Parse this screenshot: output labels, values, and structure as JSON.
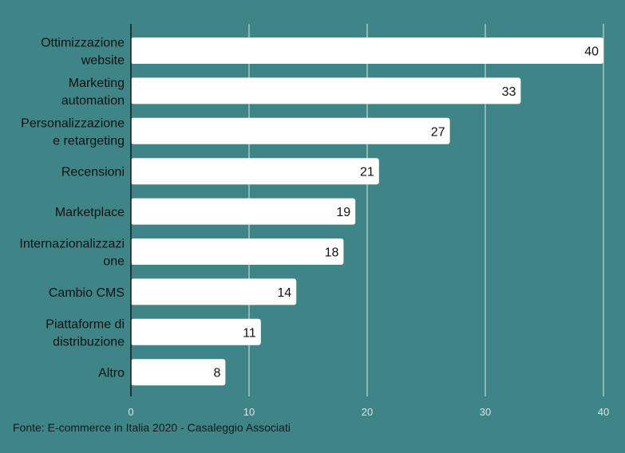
{
  "chart_data": {
    "type": "bar",
    "orientation": "horizontal",
    "categories": [
      [
        "Ottimizzazione",
        "website"
      ],
      [
        "Marketing",
        "automation"
      ],
      [
        "Personalizzazione",
        "e retargeting"
      ],
      [
        "Recensioni"
      ],
      [
        "Marketplace"
      ],
      [
        "Internazionalizzazi",
        "one"
      ],
      [
        "Cambio CMS"
      ],
      [
        "Piattaforme di",
        "distribuzione"
      ],
      [
        "Altro"
      ]
    ],
    "values": [
      40,
      33,
      27,
      21,
      19,
      18,
      14,
      11,
      8
    ],
    "xlim": [
      0,
      40
    ],
    "xticks": [
      "0",
      "10",
      "20",
      "30",
      "40"
    ],
    "grid": true,
    "colors": {
      "background": "#3f8588",
      "bar": "#ffffff",
      "grid": "#d9e6e6",
      "axis": "#1a1a1a"
    }
  },
  "source": "Fonte: E-commerce in Italia 2020 - Casaleggio Associati"
}
